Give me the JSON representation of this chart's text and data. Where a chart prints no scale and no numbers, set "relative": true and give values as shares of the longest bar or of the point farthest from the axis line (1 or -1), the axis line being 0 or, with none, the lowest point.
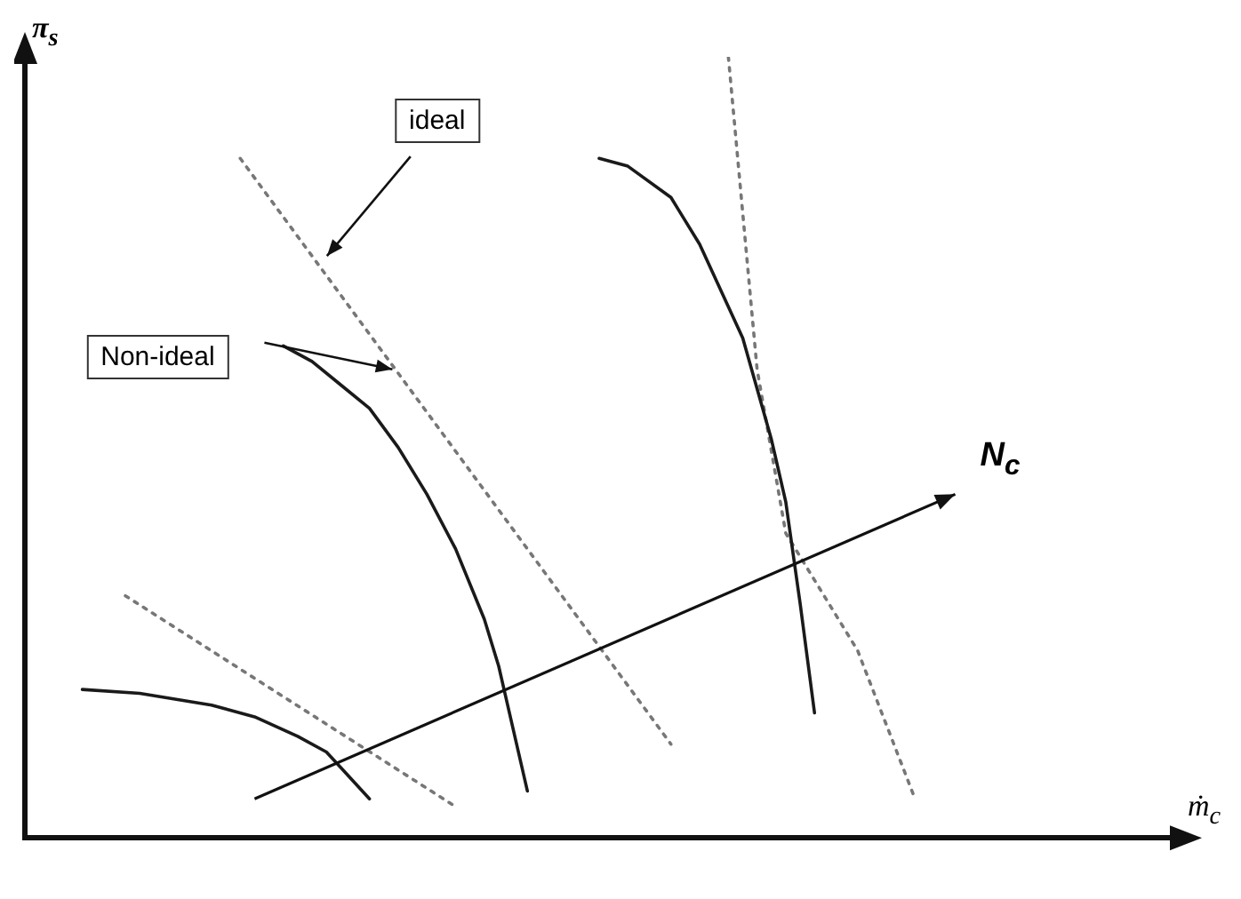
{
  "chart_data": {
    "type": "line",
    "relative": true,
    "xlabel": "ṁ$_{c}$",
    "ylabel": "π$_{s}$",
    "legend": false,
    "grid": false,
    "marker": "none",
    "annotations": [
      "ideal",
      "Non-ideal",
      "N$_{c}$"
    ],
    "categories": [
      null,
      null,
      null,
      null,
      null,
      null,
      null,
      null,
      null,
      null,
      null,
      null,
      null,
      null,
      null,
      null,
      null,
      null,
      null,
      null,
      null,
      null,
      null,
      null,
      null,
      null,
      null,
      null,
      null,
      null,
      null,
      null,
      null,
      null,
      null,
      null,
      null,
      null,
      null,
      null,
      null,
      null,
      null,
      null,
      null,
      null,
      null,
      null,
      null,
      null,
      null,
      null,
      null,
      null,
      null,
      null,
      null,
      null,
      null,
      null,
      null,
      null,
      null,
      null,
      null,
      null,
      null,
      null,
      null,
      null,
      null,
      null,
      null,
      null,
      null,
      null,
      null,
      null,
      null,
      null,
      null
    ],
    "series": [
      {
        "color": "#1a1a1a",
        "line_style": "solid",
        "values": [
          null,
          null,
          null,
          null,
          0.19,
          null,
          null,
          null,
          0.185,
          null,
          null,
          null,
          null,
          0.17,
          null,
          null,
          0.155,
          null,
          null,
          0.13,
          null,
          0.11,
          0.09,
          null,
          0.05,
          null,
          null,
          null,
          null,
          null,
          null,
          null,
          null,
          null,
          null,
          null,
          null,
          null,
          null,
          null,
          null,
          null,
          null,
          null,
          null,
          null,
          null,
          null,
          null,
          null,
          null,
          null,
          null,
          null,
          null,
          null,
          null,
          null,
          null,
          null,
          null,
          null,
          null,
          null,
          null,
          null,
          null,
          null,
          null,
          null,
          null,
          null,
          null,
          null,
          null,
          null,
          null,
          null,
          null,
          null,
          null
        ]
      },
      {
        "color": "#1a1a1a",
        "line_style": "solid",
        "values": [
          null,
          null,
          null,
          null,
          null,
          null,
          null,
          null,
          null,
          null,
          null,
          null,
          null,
          null,
          null,
          null,
          null,
          null,
          0.63,
          null,
          0.61,
          null,
          0.58,
          null,
          0.55,
          null,
          0.5,
          null,
          0.44,
          null,
          0.37,
          null,
          0.28,
          0.22,
          0.14,
          0.06,
          null,
          null,
          null,
          null,
          null,
          null,
          null,
          null,
          null,
          null,
          null,
          null,
          null,
          null,
          null,
          null,
          null,
          null,
          null,
          null,
          null,
          null,
          null,
          null,
          null,
          null,
          null,
          null,
          null,
          null,
          null,
          null,
          null,
          null,
          null,
          null,
          null,
          null,
          null,
          null,
          null,
          null,
          null,
          null,
          null
        ]
      },
      {
        "color": "#1a1a1a",
        "line_style": "solid",
        "values": [
          null,
          null,
          null,
          null,
          null,
          null,
          null,
          null,
          null,
          null,
          null,
          null,
          null,
          null,
          null,
          null,
          null,
          null,
          null,
          null,
          null,
          null,
          null,
          null,
          null,
          null,
          null,
          null,
          null,
          null,
          null,
          null,
          null,
          null,
          null,
          null,
          null,
          null,
          null,
          null,
          0.87,
          null,
          0.86,
          null,
          null,
          0.82,
          null,
          0.76,
          null,
          null,
          0.64,
          null,
          0.51,
          0.43,
          0.3,
          0.16,
          null,
          null,
          null,
          null,
          null,
          null,
          null,
          null,
          null,
          null,
          null,
          null,
          null,
          null,
          null,
          null,
          null,
          null,
          null,
          null,
          null,
          null,
          null,
          null,
          null
        ]
      },
      {
        "color": "#777777",
        "line_style": "dotted",
        "values": [
          null,
          null,
          null,
          null,
          null,
          null,
          null,
          0.31,
          null,
          null,
          null,
          null,
          null,
          null,
          null,
          null,
          null,
          null,
          null,
          null,
          null,
          null,
          null,
          null,
          null,
          null,
          null,
          null,
          null,
          null,
          0.04,
          null,
          null,
          null,
          null,
          null,
          null,
          null,
          null,
          null,
          null,
          null,
          null,
          null,
          null,
          null,
          null,
          null,
          null,
          null,
          null,
          null,
          null,
          null,
          null,
          null,
          null,
          null,
          null,
          null,
          null,
          null,
          null,
          null,
          null,
          null,
          null,
          null,
          null,
          null,
          null,
          null,
          null,
          null,
          null,
          null,
          null,
          null,
          null,
          null,
          null
        ]
      },
      {
        "color": "#777777",
        "line_style": "dotted",
        "values": [
          null,
          null,
          null,
          null,
          null,
          null,
          null,
          null,
          null,
          null,
          null,
          null,
          null,
          null,
          null,
          0.87,
          null,
          null,
          null,
          null,
          null,
          null,
          null,
          null,
          null,
          null,
          null,
          null,
          null,
          null,
          null,
          null,
          null,
          null,
          null,
          null,
          null,
          null,
          null,
          null,
          null,
          null,
          null,
          null,
          null,
          0.12,
          null,
          null,
          null,
          null,
          null,
          null,
          null,
          null,
          null,
          null,
          null,
          null,
          null,
          null,
          null,
          null,
          null,
          null,
          null,
          null,
          null,
          null,
          null,
          null,
          null,
          null,
          null,
          null,
          null,
          null,
          null,
          null,
          null,
          null,
          null
        ]
      },
      {
        "color": "#777777",
        "line_style": "dotted",
        "values": [
          null,
          null,
          null,
          null,
          null,
          null,
          null,
          null,
          null,
          null,
          null,
          null,
          null,
          null,
          null,
          null,
          null,
          null,
          null,
          null,
          null,
          null,
          null,
          null,
          null,
          null,
          null,
          null,
          null,
          null,
          null,
          null,
          null,
          null,
          null,
          null,
          null,
          null,
          null,
          null,
          null,
          null,
          null,
          null,
          null,
          null,
          null,
          null,
          null,
          1.0,
          0.8,
          0.6,
          null,
          0.39,
          null,
          null,
          null,
          null,
          0.24,
          null,
          null,
          null,
          0.05,
          null,
          null,
          null,
          null,
          null,
          null,
          null,
          null,
          null,
          null,
          null,
          null,
          null,
          null,
          null,
          null,
          null,
          null
        ]
      }
    ]
  }
}
